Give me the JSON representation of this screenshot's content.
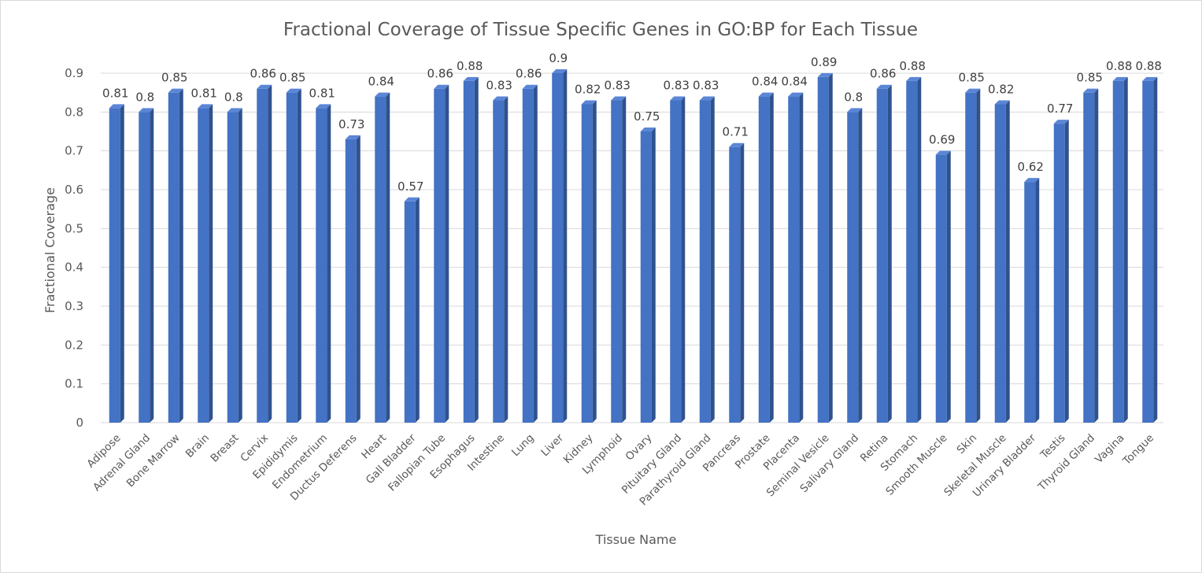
{
  "chart_data": {
    "type": "bar",
    "title": "Fractional Coverage of Tissue Specific Genes in GO:BP for Each Tissue",
    "xlabel": "Tissue Name",
    "ylabel": "Fractional Coverage",
    "ylim": [
      0,
      0.9
    ],
    "yticks": [
      "0",
      "0.1",
      "0.2",
      "0.3",
      "0.4",
      "0.5",
      "0.6",
      "0.7",
      "0.8",
      "0.9"
    ],
    "grid": true,
    "bar_style": "3d-column",
    "colors": {
      "bar_front": "#4472c4",
      "bar_side": "#2f528f",
      "bar_top": "#5b86d6",
      "grid": "#d9d9d9"
    },
    "categories": [
      "Adipose",
      "Adrenal Gland",
      "Bone Marrow",
      "Brain",
      "Breast",
      "Cervix",
      "Epididymis",
      "Endometrium",
      "Ductus Deferens",
      "Heart",
      "Gall Bladder",
      "Fallopian Tube",
      "Esophagus",
      "Intestine",
      "Lung",
      "Liver",
      "Kidney",
      "Lymphoid",
      "Ovary",
      "Pituitary Gland",
      "Parathyroid Gland",
      "Pancreas",
      "Prostate",
      "Placenta",
      "Seminal Vesicle",
      "Salivary Gland",
      "Retina",
      "Stomach",
      "Smooth Muscle",
      "Skin",
      "Skeletal Muscle",
      "Urinary Bladder",
      "Testis",
      "Thyroid Gland",
      "Vagina",
      "Tongue"
    ],
    "values": [
      0.81,
      0.8,
      0.85,
      0.81,
      0.8,
      0.86,
      0.85,
      0.81,
      0.73,
      0.84,
      0.57,
      0.86,
      0.88,
      0.83,
      0.86,
      0.9,
      0.82,
      0.83,
      0.75,
      0.83,
      0.83,
      0.71,
      0.84,
      0.84,
      0.89,
      0.8,
      0.86,
      0.88,
      0.69,
      0.85,
      0.82,
      0.62,
      0.77,
      0.85,
      0.88,
      0.88
    ],
    "value_labels": [
      "0.81",
      "0.8",
      "0.85",
      "0.81",
      "0.8",
      "0.86",
      "0.85",
      "0.81",
      "0.73",
      "0.84",
      "0.57",
      "0.86",
      "0.88",
      "0.83",
      "0.86",
      "0.9",
      "0.82",
      "0.83",
      "0.75",
      "0.83",
      "0.83",
      "0.71",
      "0.84",
      "0.84",
      "0.89",
      "0.8",
      "0.86",
      "0.88",
      "0.69",
      "0.85",
      "0.82",
      "0.62",
      "0.77",
      "0.85",
      "0.88",
      "0.88"
    ]
  }
}
